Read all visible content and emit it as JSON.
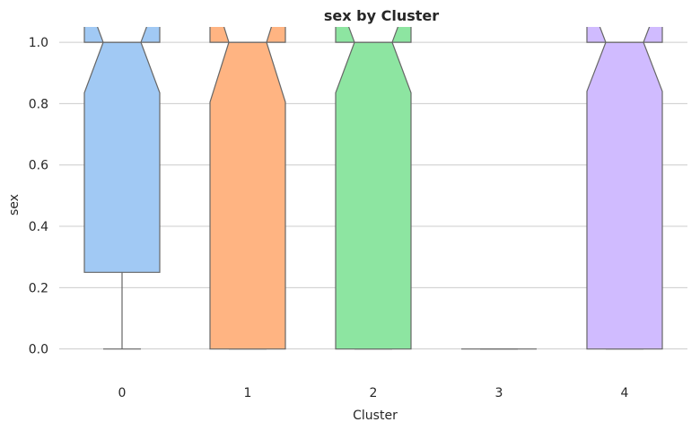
{
  "chart_data": {
    "type": "box",
    "title": "sex by Cluster",
    "xlabel": "Cluster",
    "ylabel": "sex",
    "ylim": [
      -0.08,
      1.05
    ],
    "yticks": [
      "0.0",
      "0.2",
      "0.4",
      "0.6",
      "0.8",
      "1.0"
    ],
    "grid": true,
    "notched": true,
    "categories": [
      "0",
      "1",
      "2",
      "3",
      "4"
    ],
    "boxes": [
      {
        "category": "0",
        "q1": 0.25,
        "median": 1.0,
        "q3": 1.0,
        "whisker_low": 0.0,
        "whisker_high": 1.0,
        "notch_low": 0.835,
        "notch_high": 1.165,
        "color": "#a1c9f4"
      },
      {
        "category": "1",
        "q1": 0.0,
        "median": 1.0,
        "q3": 1.0,
        "whisker_low": 0.0,
        "whisker_high": 1.0,
        "notch_low": 0.805,
        "notch_high": 1.195,
        "color": "#ffb482"
      },
      {
        "category": "2",
        "q1": 0.0,
        "median": 1.0,
        "q3": 1.0,
        "whisker_low": 0.0,
        "whisker_high": 1.0,
        "notch_low": 0.835,
        "notch_high": 1.165,
        "color": "#8de5a1"
      },
      {
        "category": "3",
        "q1": 0.0,
        "median": 0.0,
        "q3": 0.0,
        "whisker_low": 0.0,
        "whisker_high": 0.0,
        "notch_low": 0.0,
        "notch_high": 0.0,
        "color": "#ff9f9b"
      },
      {
        "category": "4",
        "q1": 0.0,
        "median": 1.0,
        "q3": 1.0,
        "whisker_low": 0.0,
        "whisker_high": 1.0,
        "notch_low": 0.84,
        "notch_high": 1.16,
        "color": "#d0bbff"
      }
    ],
    "colors": {
      "edge": "#666666",
      "grid": "#cccccc",
      "text": "#262626"
    }
  }
}
